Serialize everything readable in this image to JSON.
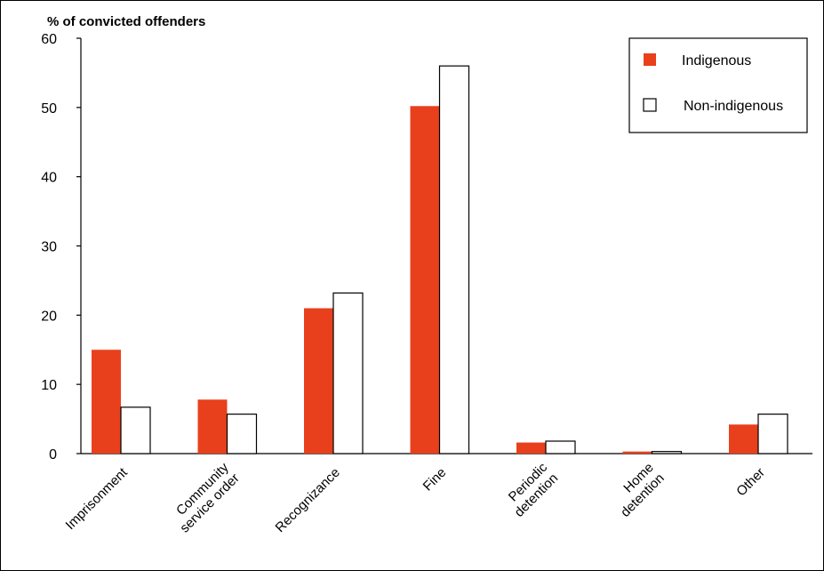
{
  "chart_data": {
    "type": "bar",
    "title": "",
    "ylabel": "% of convicted offenders",
    "xlabel": "",
    "ylim": [
      0,
      60
    ],
    "yticks": [
      0,
      10,
      20,
      30,
      40,
      50,
      60
    ],
    "grid": false,
    "legend_position": "top-right",
    "categories": [
      [
        "Imprisonment"
      ],
      [
        "Community",
        "service order"
      ],
      [
        "Recognizance"
      ],
      [
        "Fine"
      ],
      [
        "Periodic",
        "detention"
      ],
      [
        "Home",
        "detention"
      ],
      [
        "Other"
      ]
    ],
    "series": [
      {
        "name": "Indigenous",
        "color": "#e8401c",
        "values": [
          15.0,
          7.8,
          21.0,
          50.2,
          1.6,
          0.3,
          4.2
        ]
      },
      {
        "name": "Non-indigenous",
        "color": "#ffffff",
        "values": [
          6.7,
          5.7,
          23.2,
          56.0,
          1.8,
          0.3,
          5.7
        ]
      }
    ]
  }
}
